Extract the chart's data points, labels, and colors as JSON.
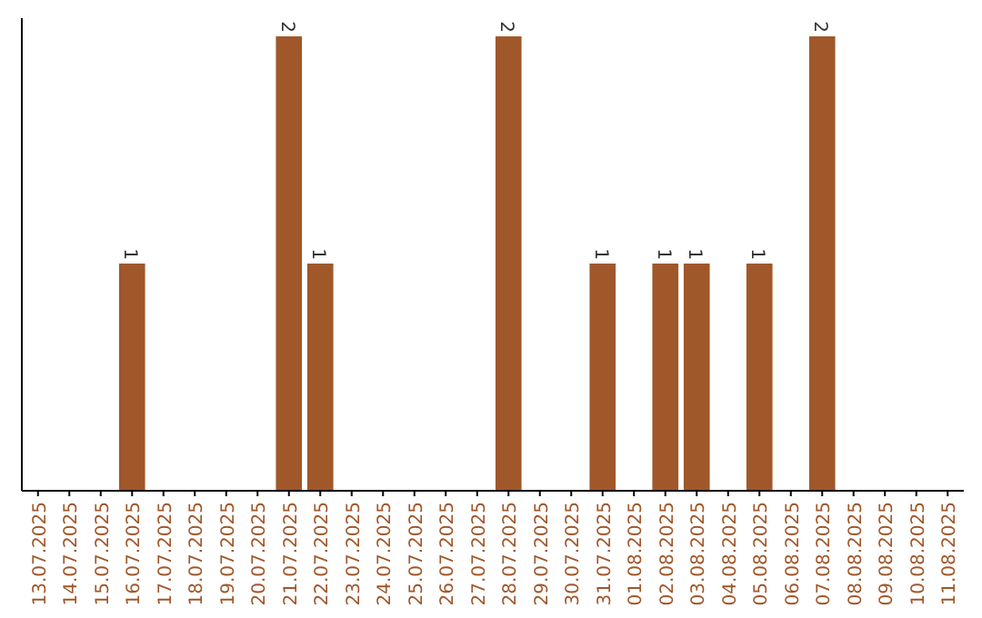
{
  "chart_data": {
    "type": "bar",
    "categories": [
      "13.07.2025",
      "14.07.2025",
      "15.07.2025",
      "16.07.2025",
      "17.07.2025",
      "18.07.2025",
      "19.07.2025",
      "20.07.2025",
      "21.07.2025",
      "22.07.2025",
      "23.07.2025",
      "24.07.2025",
      "25.07.2025",
      "26.07.2025",
      "27.07.2025",
      "28.07.2025",
      "29.07.2025",
      "30.07.2025",
      "31.07.2025",
      "01.08.2025",
      "02.08.2025",
      "03.08.2025",
      "04.08.2025",
      "05.08.2025",
      "06.08.2025",
      "07.08.2025",
      "08.08.2025",
      "09.08.2025",
      "10.08.2025",
      "11.08.2025"
    ],
    "values": [
      0,
      0,
      0,
      1,
      0,
      0,
      0,
      0,
      2,
      1,
      0,
      0,
      0,
      0,
      0,
      2,
      0,
      0,
      1,
      0,
      1,
      1,
      0,
      1,
      0,
      2,
      0,
      0,
      0,
      0
    ],
    "color": "#a0572a",
    "ylim": [
      0,
      2
    ],
    "value_labels": [
      null,
      null,
      null,
      "1",
      null,
      null,
      null,
      null,
      "2",
      "1",
      null,
      null,
      null,
      null,
      null,
      "2",
      null,
      null,
      "1",
      null,
      "1",
      "1",
      null,
      "1",
      null,
      "2",
      null,
      null,
      null,
      null
    ],
    "tick_labels": "x"
  }
}
